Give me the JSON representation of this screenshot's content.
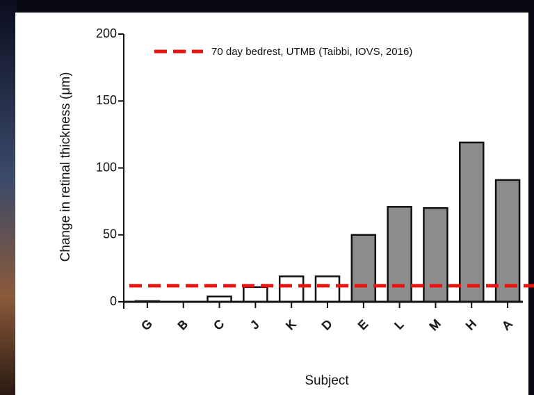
{
  "chart_data": {
    "type": "bar",
    "y_label": "Change in retinal thickness (μm)",
    "x_label": "Subject",
    "categories": [
      "G",
      "B",
      "C",
      "J",
      "K",
      "D",
      "E",
      "L",
      "M",
      "H",
      "A"
    ],
    "values": [
      0.5,
      0,
      4,
      11,
      19,
      19,
      50,
      71,
      70,
      119,
      91
    ],
    "colors": [
      "#ffffff",
      "#ffffff",
      "#ffffff",
      "#ffffff",
      "#ffffff",
      "#ffffff",
      "#8c8c8c",
      "#8c8c8c",
      "#8c8c8c",
      "#8c8c8c",
      "#8c8c8c"
    ],
    "ylim": [
      0,
      200
    ],
    "yticks": [
      0,
      50,
      100,
      150,
      200
    ],
    "reference_line": {
      "value": 12,
      "label": "70 day bedrest, UTMB (Taibbi, IOVS, 2016)",
      "color": "#e8140f"
    }
  }
}
